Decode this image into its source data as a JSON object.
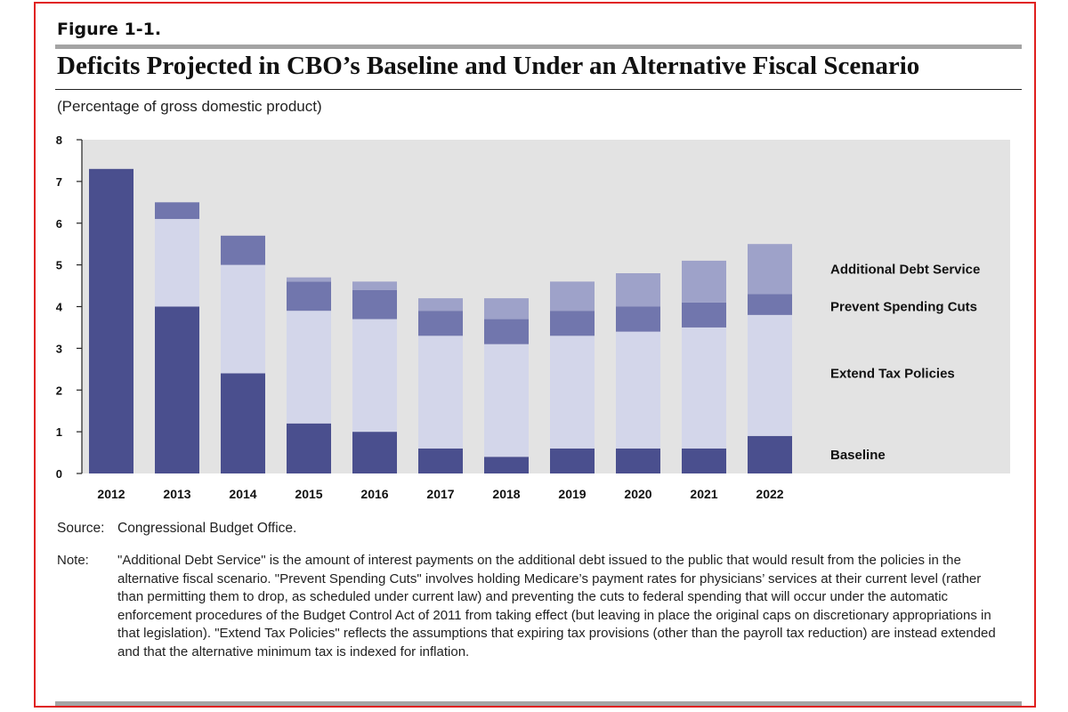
{
  "figure_label": "Figure 1-1.",
  "title": "Deficits Projected in CBO’s Baseline and Under an Alternative Fiscal Scenario",
  "unit_label": "(Percentage of gross domestic product)",
  "source_label": "Source:",
  "source_text": "Congressional Budget Office.",
  "note_label": "Note:",
  "note_text": "\"Additional Debt Service\" is the amount of interest payments on the additional debt issued to the public that would result from the policies in the alternative fiscal scenario. \"Prevent Spending Cuts\" involves holding Medicare’s payment rates for physicians’ services at their current level (rather than permitting them to drop, as scheduled under current law) and preventing the cuts to federal spending that will occur under the automatic enforcement procedures of the Budget Control Act of 2011 from taking effect (but leaving in place the original caps on discretionary appropriations in that legislation). \"Extend Tax Policies\" reflects the assumptions that expiring tax provisions (other than the payroll tax reduction) are instead extended and that the alternative minimum tax is indexed for inflation.",
  "colors": {
    "baseline": "#4a4f8e",
    "extend_tax": "#d3d6ea",
    "prevent_cuts": "#7176ad",
    "debt_service": "#9ea2c9",
    "plot_background": "#e3e3e3",
    "frame": "#e0201e"
  },
  "chart_data": {
    "type": "bar",
    "stacked": true,
    "categories": [
      "2012",
      "2013",
      "2014",
      "2015",
      "2016",
      "2017",
      "2018",
      "2019",
      "2020",
      "2021",
      "2022"
    ],
    "series": [
      {
        "name": "Baseline",
        "values": [
          7.3,
          4.0,
          2.4,
          1.2,
          1.0,
          0.6,
          0.4,
          0.6,
          0.6,
          0.6,
          0.9
        ]
      },
      {
        "name": "Extend Tax Policies",
        "values": [
          0.0,
          2.1,
          2.6,
          2.7,
          2.7,
          2.7,
          2.7,
          2.7,
          2.8,
          2.9,
          2.9
        ]
      },
      {
        "name": "Prevent Spending Cuts",
        "values": [
          0.0,
          0.4,
          0.7,
          0.7,
          0.7,
          0.6,
          0.6,
          0.6,
          0.6,
          0.6,
          0.5
        ]
      },
      {
        "name": "Additional Debt Service",
        "values": [
          0.0,
          0.0,
          0.0,
          0.1,
          0.2,
          0.3,
          0.5,
          0.7,
          0.8,
          1.0,
          1.2
        ]
      }
    ],
    "legend_order": [
      "Additional Debt Service",
      "Prevent Spending Cuts",
      "Extend Tax Policies",
      "Baseline"
    ],
    "legend_placement": "right, labels beside the 2022 bar segments",
    "yticks": [
      "0",
      "1",
      "2",
      "3",
      "4",
      "5",
      "6",
      "7",
      "8"
    ],
    "ylim": [
      0,
      8
    ],
    "grid": false,
    "title": "Deficits Projected in CBO’s Baseline and Under an Alternative Fiscal Scenario",
    "ylabel": "(Percentage of gross domestic product)",
    "xlabel": ""
  }
}
